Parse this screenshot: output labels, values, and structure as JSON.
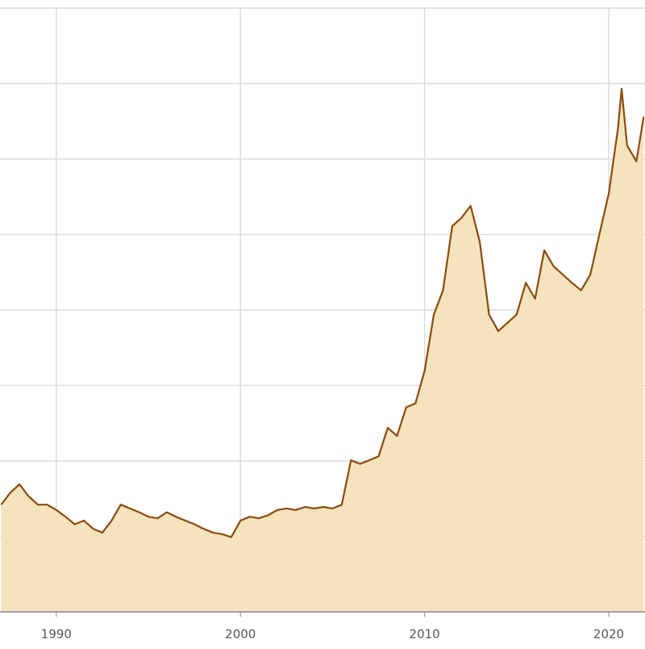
{
  "chart_data": {
    "type": "area",
    "x": [
      1987.0,
      1987.5,
      1988.0,
      1988.5,
      1989.0,
      1989.5,
      1990.0,
      1990.5,
      1991.0,
      1991.5,
      1992.0,
      1992.5,
      1993.0,
      1993.5,
      1994.0,
      1994.5,
      1995.0,
      1995.5,
      1996.0,
      1996.5,
      1997.0,
      1997.5,
      1998.0,
      1998.5,
      1999.0,
      1999.5,
      2000.0,
      2000.5,
      2001.0,
      2001.5,
      2002.0,
      2002.5,
      2003.0,
      2003.5,
      2004.0,
      2004.5,
      2005.0,
      2005.5,
      2006.0,
      2006.5,
      2007.0,
      2007.5,
      2008.0,
      2008.5,
      2009.0,
      2009.5,
      2010.0,
      2010.5,
      2011.0,
      2011.5,
      2012.0,
      2012.5,
      2013.0,
      2013.5,
      2014.0,
      2014.5,
      2015.0,
      2015.5,
      2016.0,
      2016.5,
      2017.0,
      2017.5,
      2018.0,
      2018.5,
      2019.0,
      2019.5,
      2020.0,
      2020.5,
      2020.7,
      2021.0,
      2021.5,
      2021.9
    ],
    "series": [
      {
        "color": "#8b4a0c",
        "fill": "#f4e3bd",
        "values": [
          1.42,
          1.58,
          1.69,
          1.53,
          1.42,
          1.42,
          1.35,
          1.26,
          1.16,
          1.21,
          1.1,
          1.05,
          1.21,
          1.42,
          1.37,
          1.32,
          1.26,
          1.24,
          1.32,
          1.26,
          1.21,
          1.16,
          1.1,
          1.05,
          1.03,
          0.99,
          1.21,
          1.26,
          1.24,
          1.28,
          1.35,
          1.37,
          1.35,
          1.39,
          1.37,
          1.39,
          1.37,
          1.42,
          2.01,
          1.96,
          2.01,
          2.06,
          2.44,
          2.33,
          2.71,
          2.76,
          3.19,
          3.94,
          4.26,
          5.11,
          5.22,
          5.38,
          4.9,
          3.94,
          3.72,
          3.83,
          3.94,
          4.36,
          4.15,
          4.79,
          4.58,
          4.47,
          4.36,
          4.26,
          4.47,
          5.01,
          5.54,
          6.4,
          6.93,
          6.18,
          5.97,
          6.56
        ]
      }
    ],
    "xlim": [
      1986.94,
      2021.97
    ],
    "xticks": [
      1990,
      2000,
      2010,
      2020
    ],
    "ylim": [
      0,
      8
    ],
    "ygrid": [
      1,
      2,
      3,
      4,
      5,
      6,
      7,
      8
    ],
    "grid": true
  }
}
